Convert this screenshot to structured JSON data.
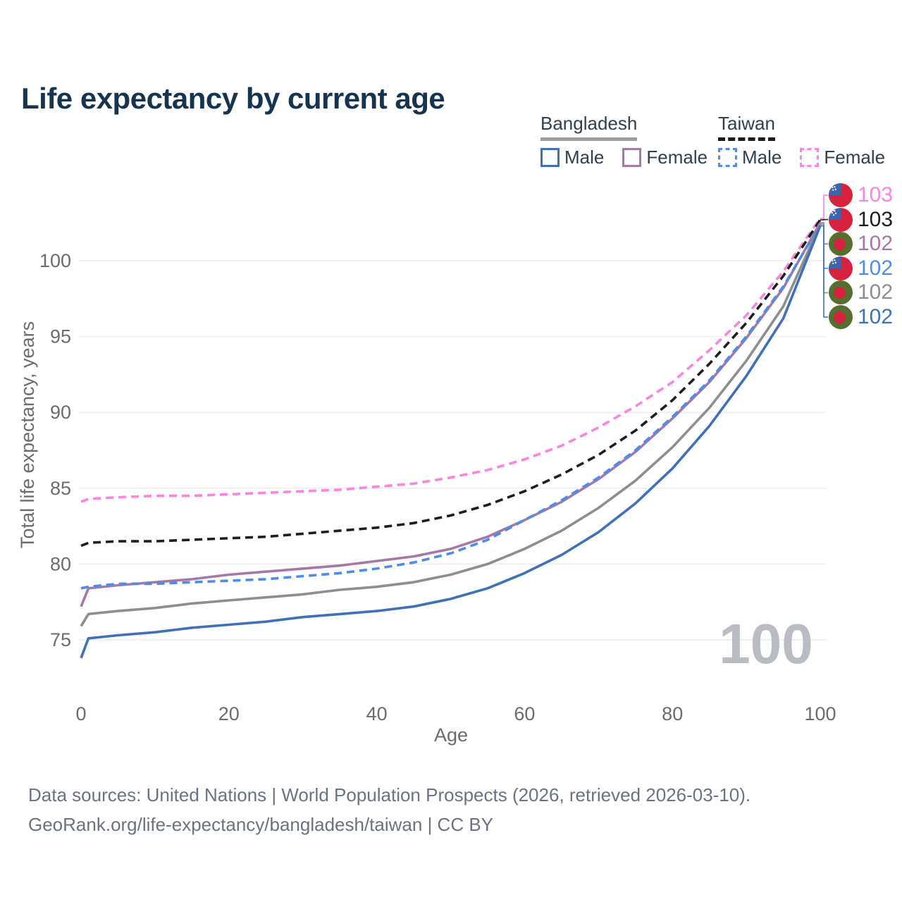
{
  "title": "Life expectancy by current age",
  "legend": {
    "groups": [
      {
        "country": "Bangladesh",
        "line_style": "solid",
        "underline_color": "#9c9ca1",
        "items": [
          {
            "label": "Male",
            "color": "#3e71b8"
          },
          {
            "label": "Female",
            "color": "#a678a8"
          }
        ]
      },
      {
        "country": "Taiwan",
        "line_style": "dashed",
        "underline_color": "#1b1b1b",
        "items": [
          {
            "label": "Male",
            "color": "#4d8ce8"
          },
          {
            "label": "Female",
            "color": "#f986dc"
          }
        ]
      }
    ]
  },
  "chart_data": {
    "type": "line",
    "title": "Life expectancy by current age",
    "xlabel": "Age",
    "ylabel": "Total life expectancy, years",
    "xlim": [
      0,
      100
    ],
    "ylim": [
      73,
      104
    ],
    "x_ticks": [
      0,
      20,
      40,
      60,
      80,
      100
    ],
    "y_ticks": [
      75,
      80,
      85,
      90,
      95,
      100
    ],
    "grid": "horizontal gridlines only",
    "legend_position": "top-right",
    "x": [
      0,
      1,
      5,
      10,
      15,
      20,
      25,
      30,
      35,
      40,
      45,
      50,
      55,
      60,
      65,
      70,
      75,
      80,
      85,
      90,
      95,
      100
    ],
    "series": [
      {
        "name": "Taiwan Female",
        "country": "Taiwan",
        "sex": "Female",
        "color": "#f986dc",
        "dash": true,
        "values": [
          84.1,
          84.3,
          84.4,
          84.5,
          84.5,
          84.6,
          84.7,
          84.8,
          84.9,
          85.1,
          85.3,
          85.7,
          86.2,
          86.9,
          87.8,
          89.0,
          90.4,
          92.0,
          94.1,
          96.4,
          99.3,
          102.8
        ]
      },
      {
        "name": "Taiwan Total",
        "country": "Taiwan",
        "sex": "Both",
        "color": "#1e1e1e",
        "dash": true,
        "values": [
          81.2,
          81.4,
          81.5,
          81.5,
          81.6,
          81.7,
          81.8,
          82.0,
          82.2,
          82.4,
          82.7,
          83.2,
          83.9,
          84.8,
          85.9,
          87.2,
          88.8,
          90.8,
          93.2,
          95.9,
          99.0,
          102.7
        ]
      },
      {
        "name": "Bangladesh Female",
        "country": "Bangladesh",
        "sex": "Female",
        "color": "#a678a8",
        "dash": false,
        "values": [
          77.2,
          78.4,
          78.6,
          78.8,
          79.0,
          79.3,
          79.5,
          79.7,
          79.9,
          80.2,
          80.5,
          81.0,
          81.8,
          82.9,
          84.1,
          85.6,
          87.4,
          89.6,
          92.0,
          94.9,
          98.2,
          102.5
        ]
      },
      {
        "name": "Taiwan Male",
        "country": "Taiwan",
        "sex": "Male",
        "color": "#4d8ce8",
        "dash": true,
        "values": [
          78.4,
          78.5,
          78.7,
          78.7,
          78.8,
          78.9,
          79.0,
          79.2,
          79.4,
          79.7,
          80.1,
          80.7,
          81.6,
          82.9,
          84.2,
          85.7,
          87.5,
          89.7,
          92.1,
          95.0,
          98.3,
          102.4
        ]
      },
      {
        "name": "Bangladesh Total",
        "country": "Bangladesh",
        "sex": "Both",
        "color": "#8e8e8e",
        "dash": false,
        "values": [
          75.9,
          76.7,
          76.9,
          77.1,
          77.4,
          77.6,
          77.8,
          78.0,
          78.3,
          78.5,
          78.8,
          79.3,
          80.0,
          81.0,
          82.2,
          83.7,
          85.5,
          87.7,
          90.3,
          93.4,
          97.0,
          102.4
        ]
      },
      {
        "name": "Bangladesh Male",
        "country": "Bangladesh",
        "sex": "Male",
        "color": "#3e71b8",
        "dash": false,
        "values": [
          73.8,
          75.1,
          75.3,
          75.5,
          75.8,
          76.0,
          76.2,
          76.5,
          76.7,
          76.9,
          77.2,
          77.7,
          78.4,
          79.4,
          80.6,
          82.1,
          84.0,
          86.3,
          89.1,
          92.4,
          96.2,
          102.3
        ]
      }
    ]
  },
  "end_labels": [
    {
      "flag": "taiwan",
      "value": "103",
      "color": "#f986dc"
    },
    {
      "flag": "taiwan",
      "value": "103",
      "color": "#1e1e1e"
    },
    {
      "flag": "bangladesh",
      "value": "102",
      "color": "#a678a8"
    },
    {
      "flag": "taiwan",
      "value": "102",
      "color": "#4d8ce8"
    },
    {
      "flag": "bangladesh",
      "value": "102",
      "color": "#8e8e8e"
    },
    {
      "flag": "bangladesh",
      "value": "102",
      "color": "#3e71b8"
    }
  ],
  "hover": {
    "age_label": "100"
  },
  "style": {
    "axis_text_color": "#6c6c6c",
    "grid_color": "#ececec",
    "watermark_color": "#b9bdc3",
    "title_color": "#16334f"
  },
  "footer": {
    "line1": "Data sources: United Nations | World Population Prospects (2026, retrieved 2026-03-10).",
    "line2": "GeoRank.org/life-expectancy/bangladesh/taiwan | CC BY"
  }
}
